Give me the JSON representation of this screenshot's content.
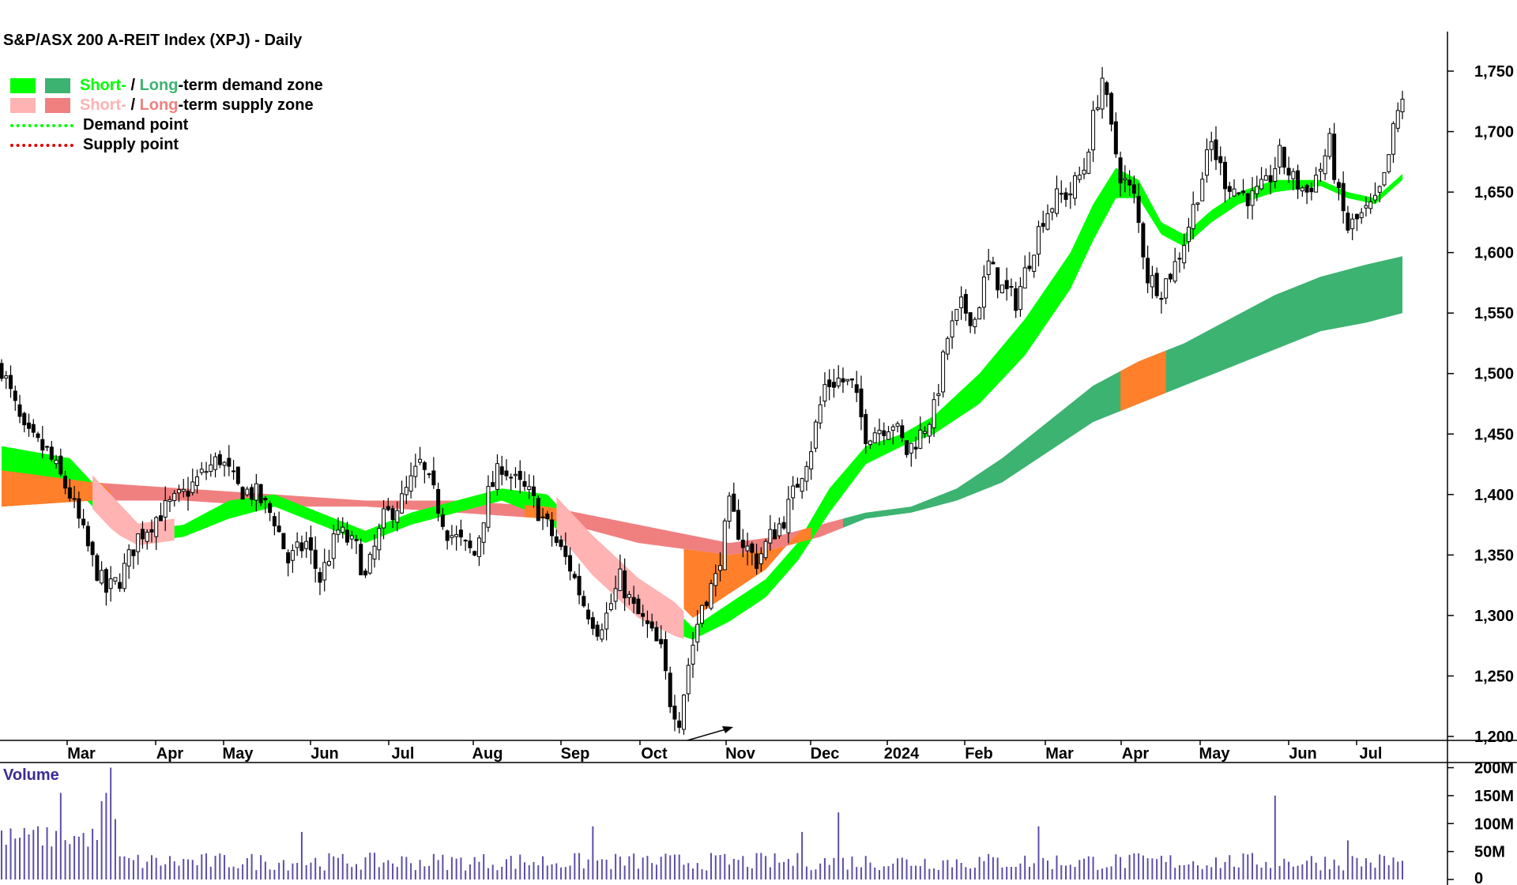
{
  "title": "S&P/ASX 200 A-REIT Index (XPJ) - Daily",
  "legend": {
    "row1": {
      "short": "Short-",
      "sep": " / ",
      "long": "Long",
      "rest": "-term demand zone"
    },
    "row2": {
      "short": "Short-",
      "sep": " / ",
      "long": "Long",
      "rest": "-term supply zone"
    },
    "row3": "Demand point",
    "row4": "Supply point"
  },
  "colors": {
    "short_demand": "#00ff00",
    "long_demand": "#3cb371",
    "short_supply": "#ffb3b3",
    "long_supply": "#f08080",
    "overlap": "#ff7f2a",
    "volume": "#5b4fa8",
    "volume_label": "#3d2b94"
  },
  "chart_data": {
    "type": "candlestick",
    "title": "S&P/ASX 200 A-REIT Index (XPJ) - Daily",
    "x_labels": [
      "Mar",
      "Apr",
      "May",
      "Jun",
      "Jul",
      "Aug",
      "Sep",
      "Oct",
      "Nov",
      "Dec",
      "2024",
      "Feb",
      "Mar",
      "Apr",
      "May",
      "Jun",
      "Jul"
    ],
    "y_ticks": [
      1200,
      1250,
      1300,
      1350,
      1400,
      1450,
      1500,
      1550,
      1600,
      1650,
      1700,
      1750
    ],
    "y_tick_labels": [
      "1,200",
      "1,250",
      "1,300",
      "1,350",
      "1,400",
      "1,450",
      "1,500",
      "1,550",
      "1,600",
      "1,650",
      "1,700",
      "1,750"
    ],
    "ylim": [
      1195,
      1770
    ],
    "close_path": [
      [
        0,
        1505
      ],
      [
        5,
        1450
      ],
      [
        10,
        1435
      ],
      [
        15,
        1400
      ],
      [
        20,
        1345
      ],
      [
        23,
        1320
      ],
      [
        26,
        1330
      ],
      [
        30,
        1365
      ],
      [
        35,
        1385
      ],
      [
        40,
        1400
      ],
      [
        45,
        1420
      ],
      [
        48,
        1430
      ],
      [
        52,
        1405
      ],
      [
        56,
        1400
      ],
      [
        60,
        1380
      ],
      [
        63,
        1345
      ],
      [
        67,
        1360
      ],
      [
        70,
        1330
      ],
      [
        74,
        1370
      ],
      [
        78,
        1355
      ],
      [
        80,
        1330
      ],
      [
        84,
        1380
      ],
      [
        88,
        1395
      ],
      [
        92,
        1425
      ],
      [
        95,
        1400
      ],
      [
        98,
        1370
      ],
      [
        101,
        1360
      ],
      [
        104,
        1350
      ],
      [
        107,
        1400
      ],
      [
        110,
        1425
      ],
      [
        113,
        1410
      ],
      [
        116,
        1400
      ],
      [
        119,
        1380
      ],
      [
        122,
        1360
      ],
      [
        125,
        1340
      ],
      [
        128,
        1310
      ],
      [
        131,
        1290
      ],
      [
        133,
        1300
      ],
      [
        136,
        1330
      ],
      [
        139,
        1305
      ],
      [
        142,
        1290
      ],
      [
        145,
        1270
      ],
      [
        147,
        1230
      ],
      [
        149,
        1215
      ],
      [
        151,
        1260
      ],
      [
        154,
        1310
      ],
      [
        157,
        1330
      ],
      [
        160,
        1390
      ],
      [
        163,
        1360
      ],
      [
        166,
        1345
      ],
      [
        169,
        1365
      ],
      [
        172,
        1380
      ],
      [
        175,
        1410
      ],
      [
        178,
        1440
      ],
      [
        181,
        1490
      ],
      [
        184,
        1495
      ],
      [
        187,
        1490
      ],
      [
        190,
        1450
      ],
      [
        193,
        1455
      ],
      [
        196,
        1460
      ],
      [
        199,
        1435
      ],
      [
        202,
        1450
      ],
      [
        205,
        1470
      ],
      [
        208,
        1530
      ],
      [
        211,
        1555
      ],
      [
        214,
        1545
      ],
      [
        217,
        1590
      ],
      [
        220,
        1570
      ],
      [
        223,
        1560
      ],
      [
        226,
        1595
      ],
      [
        229,
        1630
      ],
      [
        232,
        1645
      ],
      [
        235,
        1650
      ],
      [
        238,
        1670
      ],
      [
        240,
        1710
      ],
      [
        242,
        1745
      ],
      [
        244,
        1700
      ],
      [
        246,
        1665
      ],
      [
        249,
        1645
      ],
      [
        252,
        1580
      ],
      [
        255,
        1570
      ],
      [
        258,
        1590
      ],
      [
        260,
        1610
      ],
      [
        263,
        1650
      ],
      [
        266,
        1690
      ],
      [
        269,
        1660
      ],
      [
        272,
        1650
      ],
      [
        275,
        1645
      ],
      [
        278,
        1655
      ],
      [
        281,
        1680
      ],
      [
        284,
        1660
      ],
      [
        287,
        1650
      ],
      [
        290,
        1670
      ],
      [
        292,
        1690
      ],
      [
        294,
        1645
      ],
      [
        296,
        1620
      ],
      [
        299,
        1630
      ],
      [
        302,
        1640
      ],
      [
        304,
        1660
      ],
      [
        306,
        1700
      ],
      [
        308,
        1730
      ]
    ],
    "short_term_zone_upper": [
      [
        0,
        1440
      ],
      [
        15,
        1430
      ],
      [
        25,
        1390
      ],
      [
        30,
        1370
      ],
      [
        40,
        1375
      ],
      [
        50,
        1395
      ],
      [
        60,
        1400
      ],
      [
        70,
        1385
      ],
      [
        80,
        1370
      ],
      [
        90,
        1385
      ],
      [
        100,
        1395
      ],
      [
        110,
        1405
      ],
      [
        120,
        1400
      ],
      [
        130,
        1360
      ],
      [
        140,
        1325
      ],
      [
        148,
        1305
      ],
      [
        152,
        1290
      ],
      [
        160,
        1310
      ],
      [
        168,
        1330
      ],
      [
        175,
        1360
      ],
      [
        182,
        1405
      ],
      [
        190,
        1440
      ],
      [
        198,
        1450
      ],
      [
        205,
        1465
      ],
      [
        215,
        1500
      ],
      [
        225,
        1545
      ],
      [
        235,
        1600
      ],
      [
        240,
        1640
      ],
      [
        245,
        1670
      ],
      [
        250,
        1660
      ],
      [
        255,
        1625
      ],
      [
        260,
        1615
      ],
      [
        266,
        1635
      ],
      [
        272,
        1650
      ],
      [
        280,
        1660
      ],
      [
        290,
        1660
      ],
      [
        296,
        1650
      ],
      [
        302,
        1645
      ],
      [
        308,
        1665
      ]
    ],
    "short_term_zone_lower": [
      [
        0,
        1410
      ],
      [
        15,
        1410
      ],
      [
        25,
        1370
      ],
      [
        30,
        1360
      ],
      [
        40,
        1365
      ],
      [
        50,
        1380
      ],
      [
        60,
        1390
      ],
      [
        70,
        1375
      ],
      [
        80,
        1360
      ],
      [
        90,
        1375
      ],
      [
        100,
        1385
      ],
      [
        110,
        1395
      ],
      [
        120,
        1380
      ],
      [
        130,
        1335
      ],
      [
        140,
        1300
      ],
      [
        148,
        1285
      ],
      [
        152,
        1280
      ],
      [
        160,
        1295
      ],
      [
        168,
        1315
      ],
      [
        175,
        1345
      ],
      [
        182,
        1385
      ],
      [
        190,
        1425
      ],
      [
        198,
        1440
      ],
      [
        205,
        1450
      ],
      [
        215,
        1475
      ],
      [
        225,
        1515
      ],
      [
        235,
        1570
      ],
      [
        240,
        1610
      ],
      [
        245,
        1645
      ],
      [
        250,
        1645
      ],
      [
        255,
        1615
      ],
      [
        260,
        1605
      ],
      [
        266,
        1625
      ],
      [
        272,
        1640
      ],
      [
        280,
        1650
      ],
      [
        290,
        1655
      ],
      [
        296,
        1645
      ],
      [
        302,
        1640
      ],
      [
        308,
        1660
      ]
    ],
    "long_term_zone_upper": [
      [
        0,
        1420
      ],
      [
        20,
        1410
      ],
      [
        40,
        1405
      ],
      [
        60,
        1400
      ],
      [
        80,
        1395
      ],
      [
        100,
        1395
      ],
      [
        120,
        1390
      ],
      [
        140,
        1375
      ],
      [
        160,
        1360
      ],
      [
        170,
        1365
      ],
      [
        180,
        1375
      ],
      [
        190,
        1385
      ],
      [
        200,
        1390
      ],
      [
        210,
        1405
      ],
      [
        220,
        1430
      ],
      [
        230,
        1460
      ],
      [
        240,
        1490
      ],
      [
        250,
        1510
      ],
      [
        260,
        1525
      ],
      [
        270,
        1545
      ],
      [
        280,
        1565
      ],
      [
        290,
        1580
      ],
      [
        300,
        1590
      ],
      [
        308,
        1597
      ]
    ],
    "long_term_zone_lower": [
      [
        0,
        1390
      ],
      [
        20,
        1395
      ],
      [
        40,
        1395
      ],
      [
        60,
        1390
      ],
      [
        80,
        1390
      ],
      [
        100,
        1385
      ],
      [
        120,
        1380
      ],
      [
        140,
        1360
      ],
      [
        160,
        1350
      ],
      [
        170,
        1355
      ],
      [
        180,
        1365
      ],
      [
        190,
        1380
      ],
      [
        200,
        1385
      ],
      [
        210,
        1395
      ],
      [
        220,
        1410
      ],
      [
        230,
        1435
      ],
      [
        240,
        1460
      ],
      [
        250,
        1475
      ],
      [
        260,
        1490
      ],
      [
        270,
        1505
      ],
      [
        280,
        1520
      ],
      [
        290,
        1535
      ],
      [
        300,
        1542
      ],
      [
        308,
        1550
      ]
    ],
    "volume": {
      "label": "Volume",
      "y_ticks": [
        0,
        50,
        100,
        150,
        200
      ],
      "y_tick_labels": [
        "0",
        "50M",
        "100M",
        "150M",
        "200M"
      ],
      "ylim": [
        0,
        205
      ],
      "spikes": [
        [
          8,
          95
        ],
        [
          13,
          155
        ],
        [
          22,
          140
        ],
        [
          23,
          155
        ],
        [
          24,
          200
        ],
        [
          25,
          108
        ],
        [
          66,
          85
        ],
        [
          130,
          95
        ],
        [
          176,
          85
        ],
        [
          184,
          120
        ],
        [
          228,
          95
        ],
        [
          280,
          150
        ],
        [
          296,
          70
        ]
      ],
      "base_level": 32
    }
  }
}
